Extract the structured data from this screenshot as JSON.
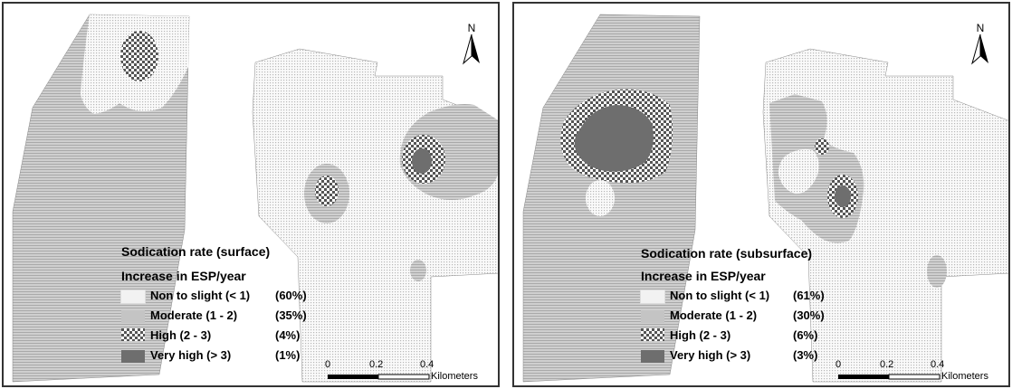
{
  "maps": [
    {
      "title": "Sodication rate (surface)",
      "subtitle": "Increase in ESP/year",
      "classes": [
        {
          "label": "Non to slight (< 1)",
          "percent": "(60%)",
          "fill": "dots"
        },
        {
          "label": "Moderate (1 - 2)",
          "percent": "(35%)",
          "fill": "lines"
        },
        {
          "label": "High (2 - 3)",
          "percent": "(4%)",
          "fill": "checks"
        },
        {
          "label": "Very high (> 3)",
          "percent": "(1%)",
          "fill": "dark"
        }
      ],
      "north": "N",
      "scale": {
        "ticks": [
          "0",
          "0.2",
          "0.4"
        ],
        "unit": "Kilometers"
      }
    },
    {
      "title": "Sodication rate (subsurface)",
      "subtitle": "Increase in ESP/year",
      "classes": [
        {
          "label": "Non to slight (< 1)",
          "percent": "(61%)",
          "fill": "dots"
        },
        {
          "label": "Moderate (1 - 2)",
          "percent": "(30%)",
          "fill": "lines"
        },
        {
          "label": "High (2 - 3)",
          "percent": "(6%)",
          "fill": "checks"
        },
        {
          "label": "Very high (> 3)",
          "percent": "(3%)",
          "fill": "dark"
        }
      ],
      "north": "N",
      "scale": {
        "ticks": [
          "0",
          "0.2",
          "0.4"
        ],
        "unit": "Kilometers"
      }
    }
  ],
  "colors": {
    "dots": "#f2f2f2",
    "lines": "#c4c4c4",
    "checks": "#8a8a8a",
    "dark": "#6e6e6e",
    "border": "#333333"
  }
}
